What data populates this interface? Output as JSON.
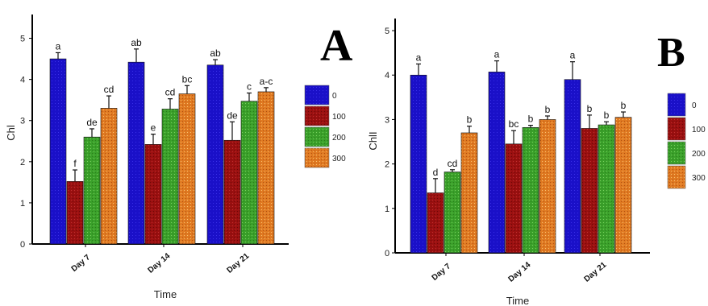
{
  "colors": {
    "0": "#1a10c8",
    "100": "#9a1010",
    "200": "#3aa02a",
    "300": "#e07a22"
  },
  "chart_data": [
    {
      "type": "bar",
      "panel_label": "A",
      "categories": [
        "Day 7",
        "Day 14",
        "Day 21"
      ],
      "xlabel": "Time",
      "ylabel": "Chl",
      "ylim": [
        0,
        5.5
      ],
      "yticks": [
        0,
        1,
        2,
        3,
        4,
        5
      ],
      "legend_position": "right",
      "series": [
        {
          "name": "0",
          "values": [
            4.5,
            4.42,
            4.35
          ],
          "errors": [
            0.15,
            0.32,
            0.13
          ],
          "letters": [
            "a",
            "ab",
            "ab"
          ]
        },
        {
          "name": "100",
          "values": [
            1.52,
            2.42,
            2.52
          ],
          "errors": [
            0.28,
            0.25,
            0.45
          ],
          "letters": [
            "f",
            "e",
            "de"
          ]
        },
        {
          "name": "200",
          "values": [
            2.6,
            3.28,
            3.47
          ],
          "errors": [
            0.2,
            0.25,
            0.2
          ],
          "letters": [
            "de",
            "cd",
            "c"
          ]
        },
        {
          "name": "300",
          "values": [
            3.3,
            3.65,
            3.7
          ],
          "errors": [
            0.3,
            0.2,
            0.1
          ],
          "letters": [
            "cd",
            "bc",
            "a-c"
          ]
        }
      ]
    },
    {
      "type": "bar",
      "panel_label": "B",
      "categories": [
        "Day 7",
        "Day 14",
        "Day 21"
      ],
      "xlabel": "Time",
      "ylabel": "ChlI",
      "ylim": [
        0,
        5.2
      ],
      "yticks": [
        0,
        1,
        2,
        3,
        4,
        5
      ],
      "legend_position": "right",
      "series": [
        {
          "name": "0",
          "values": [
            4.0,
            4.07,
            3.9
          ],
          "errors": [
            0.25,
            0.25,
            0.4
          ],
          "letters": [
            "a",
            "a",
            "a"
          ]
        },
        {
          "name": "100",
          "values": [
            1.35,
            2.45,
            2.8
          ],
          "errors": [
            0.32,
            0.3,
            0.3
          ],
          "letters": [
            "d",
            "bc",
            "b"
          ]
        },
        {
          "name": "200",
          "values": [
            1.82,
            2.82,
            2.88
          ],
          "errors": [
            0.05,
            0.05,
            0.07
          ],
          "letters": [
            "cd",
            "b",
            "b"
          ]
        },
        {
          "name": "300",
          "values": [
            2.7,
            3.0,
            3.05
          ],
          "errors": [
            0.15,
            0.08,
            0.12
          ],
          "letters": [
            "b",
            "b",
            "b"
          ]
        }
      ]
    }
  ]
}
